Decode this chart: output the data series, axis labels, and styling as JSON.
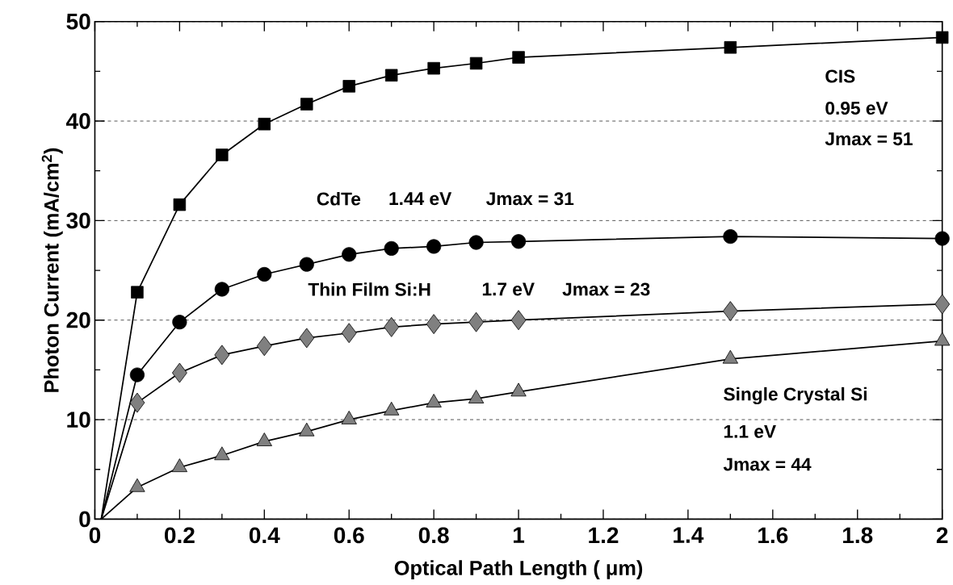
{
  "chart_data": {
    "type": "line",
    "xlabel": "Optical Path Length ( μm)",
    "ylabel": "Photon Current (mA/cm$^{2}$)",
    "xlim": [
      0,
      2
    ],
    "ylim": [
      0,
      50
    ],
    "xticks": [
      0,
      0.2,
      0.4,
      0.6,
      0.8,
      1,
      1.2,
      1.4,
      1.6,
      1.8,
      2
    ],
    "yticks": [
      0,
      10,
      20,
      30,
      40,
      50
    ],
    "grid": "y",
    "line_style": "solid",
    "series": [
      {
        "color": "#000000",
        "marker": "square",
        "x": [
          0.015,
          0.1,
          0.2,
          0.3,
          0.4,
          0.5,
          0.6,
          0.7,
          0.8,
          0.9,
          1,
          1.5,
          2
        ],
        "values": [
          0,
          22.8,
          31.6,
          36.6,
          39.7,
          41.7,
          43.5,
          44.6,
          45.3,
          45.8,
          46.4,
          47.4,
          48.4
        ]
      },
      {
        "color": "#000000",
        "marker": "circle",
        "x": [
          0.015,
          0.1,
          0.2,
          0.3,
          0.4,
          0.5,
          0.6,
          0.7,
          0.8,
          0.9,
          1,
          1.5,
          2
        ],
        "values": [
          0,
          14.5,
          19.8,
          23.1,
          24.6,
          25.6,
          26.6,
          27.2,
          27.4,
          27.8,
          27.9,
          28.4,
          28.2
        ]
      },
      {
        "color": "#808080",
        "marker": "diamond",
        "x": [
          0.015,
          0.1,
          0.2,
          0.3,
          0.4,
          0.5,
          0.6,
          0.7,
          0.8,
          0.9,
          1,
          1.5,
          2
        ],
        "values": [
          0,
          11.7,
          14.7,
          16.5,
          17.4,
          18.2,
          18.7,
          19.3,
          19.6,
          19.8,
          20.0,
          20.9,
          21.6
        ]
      },
      {
        "color": "#808080",
        "marker": "triangle",
        "x": [
          0.015,
          0.1,
          0.2,
          0.3,
          0.4,
          0.5,
          0.6,
          0.7,
          0.8,
          0.9,
          1,
          1.5,
          2
        ],
        "values": [
          0,
          3.2,
          5.2,
          6.4,
          7.8,
          8.8,
          10.0,
          10.9,
          11.7,
          12.1,
          12.8,
          16.1,
          17.9
        ]
      }
    ],
    "annotations": [
      "CIS",
      "0.95 eV",
      "Jmax = 51",
      "CdTe",
      "1.44 eV",
      "Jmax = 31",
      "Thin Film Si:H",
      "1.7 eV",
      "Jmax = 23",
      "Single Crystal Si",
      "1.1 eV",
      "Jmax = 44"
    ]
  }
}
